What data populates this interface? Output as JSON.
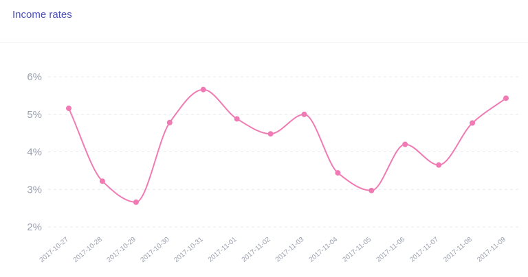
{
  "header": {
    "title": "Income rates"
  },
  "colors": {
    "series": "#f07ab3",
    "grid": "#e6e8ee",
    "title": "#4a4fb8",
    "ticks": "#9aa0ad"
  },
  "chart_data": {
    "type": "line",
    "title": "",
    "xlabel": "",
    "ylabel": "",
    "x": [
      "2017-10-27",
      "2017-10-28",
      "2017-10-29",
      "2017-10-30",
      "2017-10-31",
      "2017-11-01",
      "2017-11-02",
      "2017-11-03",
      "2017-11-04",
      "2017-11-05",
      "2017-11-06",
      "2017-11-07",
      "2017-11-08",
      "2017-11-09"
    ],
    "series": [
      {
        "values": [
          5.16,
          3.22,
          2.66,
          4.78,
          5.66,
          4.88,
          4.48,
          5.0,
          3.44,
          2.97,
          4.2,
          3.65,
          4.77,
          5.43
        ]
      }
    ],
    "ylim": [
      2,
      6
    ],
    "yticks": [
      "2%",
      "3%",
      "4%",
      "5%",
      "6%"
    ],
    "grid": "horizontal dashed",
    "legend": "none",
    "curve": "smooth"
  }
}
